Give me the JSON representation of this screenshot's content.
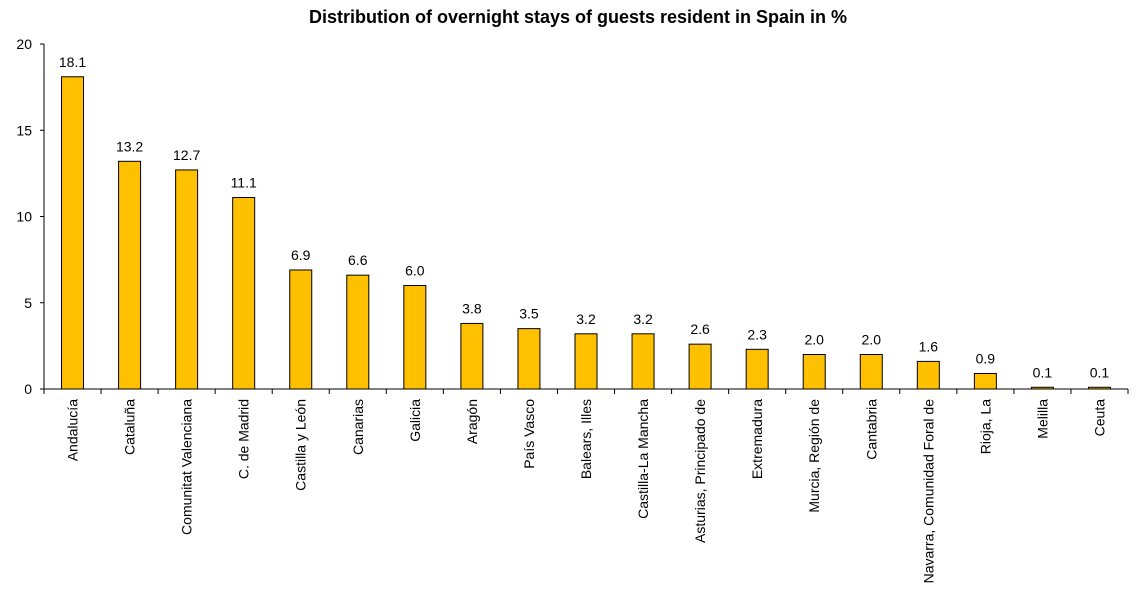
{
  "chart_data": {
    "type": "bar",
    "title": "Distribution of overnight stays of guests resident in Spain in %",
    "xlabel": "",
    "ylabel": "",
    "ylim": [
      0,
      20
    ],
    "yticks": [
      0,
      5,
      10,
      15,
      20
    ],
    "grid": false,
    "legend": "none",
    "colors": {
      "bar_fill": "#FFC000",
      "bar_stroke": "#000000",
      "axis": "#000000"
    },
    "categories": [
      "Andalucía",
      "Cataluña",
      "Comunitat Valenciana",
      "C. de Madrid",
      "Castilla y León",
      "Canarias",
      "Galicia",
      "Aragón",
      "País Vasco",
      "Balears, Illes",
      "Castilla-La Mancha",
      "Asturias, Principado de",
      "Extremadura",
      "Murcia, Región de",
      "Cantabria",
      "Navarra, Comunidad Foral de",
      "Rioja, La",
      "Melilla",
      "Ceuta"
    ],
    "values": [
      18.1,
      13.2,
      12.7,
      11.1,
      6.9,
      6.6,
      6.0,
      3.8,
      3.5,
      3.2,
      3.2,
      2.6,
      2.3,
      2.0,
      2.0,
      1.6,
      0.9,
      0.1,
      0.1
    ],
    "data_labels": [
      "18.1",
      "13.2",
      "12.7",
      "11.1",
      "6.9",
      "6.6",
      "6.0",
      "3.8",
      "3.5",
      "3.2",
      "3.2",
      "2.6",
      "2.3",
      "2.0",
      "2.0",
      "1.6",
      "0.9",
      "0.1",
      "0.1"
    ]
  }
}
